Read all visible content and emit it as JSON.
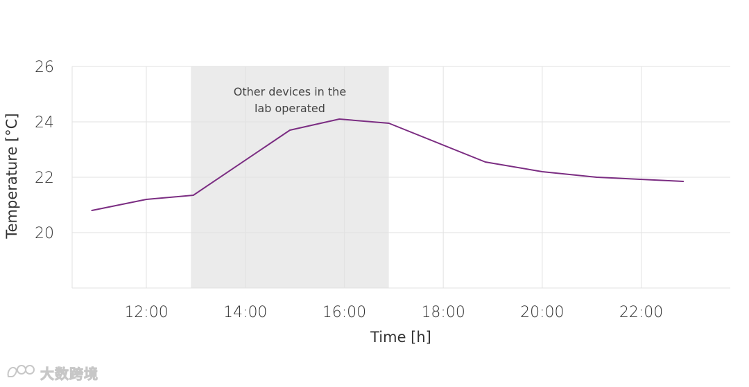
{
  "chart_data": {
    "type": "line",
    "title": "",
    "xlabel": "Time [h]",
    "ylabel": "Temperature [°C]",
    "xlim": [
      10.5,
      23.8
    ],
    "ylim": [
      18,
      26
    ],
    "x_ticks": [
      12,
      14,
      16,
      18,
      20,
      22
    ],
    "x_tick_labels": [
      "12:00",
      "14:00",
      "16:00",
      "18:00",
      "20:00",
      "22:00"
    ],
    "y_ticks": [
      20,
      22,
      24,
      26
    ],
    "y_tick_labels": [
      "20",
      "22",
      "24",
      "26"
    ],
    "grid": true,
    "series": [
      {
        "color": "#7b2d82",
        "x": [
          10.9,
          12.0,
          12.95,
          14.9,
          15.9,
          16.9,
          18.85,
          20.0,
          21.1,
          22.85
        ],
        "y": [
          20.8,
          21.2,
          21.35,
          23.7,
          24.1,
          23.95,
          22.55,
          22.2,
          22.0,
          21.85
        ]
      }
    ],
    "shaded_region": {
      "x_start": 12.9,
      "x_end": 16.9,
      "color": "#ebebeb",
      "label_lines": [
        "Other devices in the",
        "lab operated"
      ]
    }
  },
  "watermark": {
    "logo_text": "大数跨境"
  }
}
